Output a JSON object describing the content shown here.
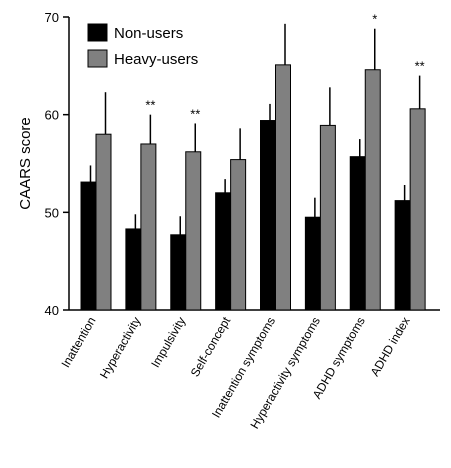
{
  "chart_data": {
    "type": "bar",
    "title": "",
    "xlabel": "",
    "ylabel": "CAARS score",
    "ylim": [
      40,
      70
    ],
    "yticks": [
      40,
      50,
      60,
      70
    ],
    "categories": [
      "Inattention",
      "Hyperactivity",
      "Impulsivity",
      "Self-concept",
      "Inattention symptoms",
      "Hyperactivity symptoms",
      "ADHD symptoms",
      "ADHD index"
    ],
    "series": [
      {
        "name": "Non-users",
        "color": "#000000",
        "values": [
          53.1,
          48.3,
          47.7,
          52.0,
          59.4,
          49.5,
          55.7,
          51.2
        ],
        "errors": [
          1.7,
          1.5,
          1.9,
          1.4,
          1.7,
          2.0,
          1.8,
          1.6
        ]
      },
      {
        "name": "Heavy-users",
        "color": "#808080",
        "values": [
          58.0,
          57.0,
          56.2,
          55.4,
          65.1,
          58.9,
          64.6,
          60.6
        ],
        "errors": [
          4.3,
          3.0,
          2.9,
          3.2,
          4.2,
          3.9,
          4.2,
          3.4
        ]
      }
    ],
    "significance": [
      "",
      "**",
      "**",
      "",
      "",
      "",
      "*",
      "**"
    ],
    "legend_position": "top-left",
    "grid": false
  }
}
